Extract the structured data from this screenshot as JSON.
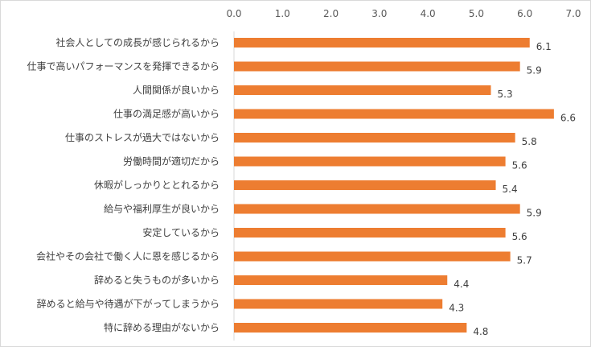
{
  "chart_data": {
    "type": "bar",
    "orientation": "horizontal",
    "title": "",
    "xlabel": "",
    "ylabel": "",
    "xlim": [
      0,
      7
    ],
    "x_ticks": [
      "0.0",
      "1.0",
      "2.0",
      "3.0",
      "4.0",
      "5.0",
      "6.0",
      "7.0"
    ],
    "x_axis_position": "top",
    "grid": false,
    "legend": "none",
    "bar_color": "#ED7D31",
    "categories": [
      "社会人としての成長が感じられるから",
      "仕事で高いパフォーマンスを発揮できるから",
      "人間関係が良いから",
      "仕事の満足感が高いから",
      "仕事のストレスが過大ではないから",
      "労働時間が適切だから",
      "休暇がしっかりととれるから",
      "給与や福利厚生が良いから",
      "安定しているから",
      "会社やその会社で働く人に恩を感じるから",
      "辞めると失うものが多いから",
      "辞めると給与や待遇が下がってしまうから",
      "特に辞める理由がないから"
    ],
    "values": [
      6.1,
      5.9,
      5.3,
      6.6,
      5.8,
      5.6,
      5.4,
      5.9,
      5.6,
      5.7,
      4.4,
      4.3,
      4.8
    ],
    "data_labels": [
      "6.1",
      "5.9",
      "5.3",
      "6.6",
      "5.8",
      "5.6",
      "5.4",
      "5.9",
      "5.6",
      "5.7",
      "4.4",
      "4.3",
      "4.8"
    ]
  }
}
